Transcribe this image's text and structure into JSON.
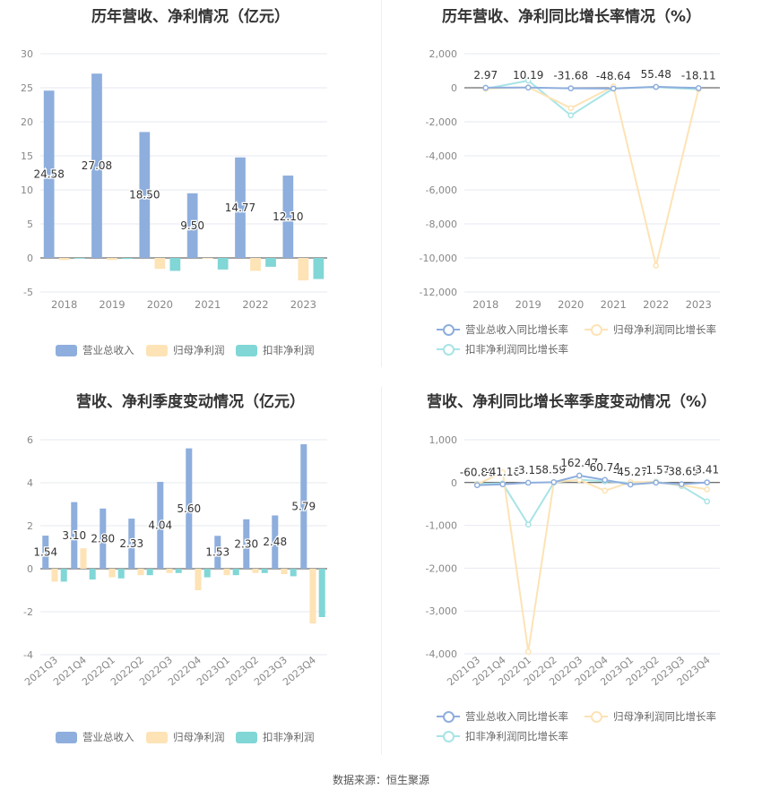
{
  "colors": {
    "revenue": "#8eaedd",
    "net_profit": "#fde3b5",
    "deducted_profit": "#81d6d6",
    "grid": "#e6e9f0",
    "axis_text": "#888888",
    "label_text": "#333333"
  },
  "source": "数据来源：恒生聚源",
  "panels": {
    "p1": {
      "title": "历年营收、净利情况（亿元）",
      "legend": [
        {
          "label": "营业总收入",
          "icon": "bar-swatch"
        },
        {
          "label": "归母净利润",
          "icon": "bar-swatch"
        },
        {
          "label": "扣非净利润",
          "icon": "bar-swatch"
        }
      ]
    },
    "p2": {
      "title": "历年营收、净利同比增长率情况（%）",
      "legend": [
        {
          "label": "营业总收入同比增长率",
          "icon": "line-circle"
        },
        {
          "label": "归母净利润同比增长率",
          "icon": "line-circle"
        },
        {
          "label": "扣非净利润同比增长率",
          "icon": "line-circle"
        }
      ]
    },
    "p3": {
      "title": "营收、净利季度变动情况（亿元）",
      "legend": [
        {
          "label": "营业总收入",
          "icon": "bar-swatch"
        },
        {
          "label": "归母净利润",
          "icon": "bar-swatch"
        },
        {
          "label": "扣非净利润",
          "icon": "bar-swatch"
        }
      ]
    },
    "p4": {
      "title": "营收、净利同比增长率季度变动情况（%）",
      "legend": [
        {
          "label": "营业总收入同比增长率",
          "icon": "line-circle"
        },
        {
          "label": "归母净利润同比增长率",
          "icon": "line-circle"
        },
        {
          "label": "扣非净利润同比增长率",
          "icon": "line-circle"
        }
      ]
    }
  },
  "chart_data": [
    {
      "type": "bar",
      "title": "历年营收、净利情况（亿元）",
      "categories": [
        "2018",
        "2019",
        "2020",
        "2021",
        "2022",
        "2023"
      ],
      "ylim": [
        -5,
        30
      ],
      "yticks": [
        -5,
        0,
        5,
        10,
        15,
        20,
        25,
        30
      ],
      "grid": true,
      "legend_position": "bottom",
      "series": [
        {
          "name": "营业总收入",
          "values": [
            24.58,
            27.08,
            18.5,
            9.5,
            14.77,
            12.1
          ],
          "labels": [
            "24.58",
            "27.08",
            "18.50",
            "9.50",
            "14.77",
            "12.10"
          ]
        },
        {
          "name": "归母净利润",
          "values": [
            -0.3,
            -0.3,
            -1.6,
            -0.1,
            -1.9,
            -3.3
          ]
        },
        {
          "name": "扣非净利润",
          "values": [
            -0.1,
            -0.15,
            -1.9,
            -1.7,
            -1.3,
            -3.1
          ]
        }
      ]
    },
    {
      "type": "line",
      "title": "历年营收、净利同比增长率情况（%）",
      "categories": [
        "2018",
        "2019",
        "2020",
        "2021",
        "2022",
        "2023"
      ],
      "ylim": [
        -12000,
        2000
      ],
      "yticks": [
        -12000,
        -10000,
        -8000,
        -6000,
        -4000,
        -2000,
        0,
        2000
      ],
      "ytick_labels": [
        "-12,000",
        "-10,000",
        "-8,000",
        "-6,000",
        "-4,000",
        "-2,000",
        "0",
        "2,000"
      ],
      "grid": true,
      "legend_position": "bottom",
      "series": [
        {
          "name": "营业总收入同比增长率",
          "values": [
            2.97,
            10.19,
            -31.68,
            -48.64,
            55.48,
            -18.11
          ],
          "labels": [
            "2.97",
            "10.19",
            "-31.68",
            "-48.64",
            "55.48",
            "-18.11"
          ]
        },
        {
          "name": "归母净利润同比增长率",
          "values": [
            -50,
            30,
            -1200,
            80,
            -10450,
            -80
          ]
        },
        {
          "name": "扣非净利润同比增长率",
          "values": [
            -60,
            420,
            -1620,
            -30,
            40,
            -90
          ]
        }
      ]
    },
    {
      "type": "bar",
      "title": "营收、净利季度变动情况（亿元）",
      "categories": [
        "2021Q3",
        "2021Q4",
        "2022Q1",
        "2022Q2",
        "2022Q3",
        "2022Q4",
        "2023Q1",
        "2023Q2",
        "2023Q3",
        "2023Q4"
      ],
      "ylim": [
        -4,
        6
      ],
      "yticks": [
        -4,
        -2,
        0,
        2,
        4,
        6
      ],
      "grid": true,
      "legend_position": "bottom",
      "series": [
        {
          "name": "营业总收入",
          "values": [
            1.54,
            3.1,
            2.8,
            2.33,
            4.04,
            5.6,
            1.53,
            2.3,
            2.48,
            5.79
          ],
          "labels": [
            "1.54",
            "3.10",
            "2.80",
            "2.33",
            "4.04",
            "5.60",
            "1.53",
            "2.30",
            "2.48",
            "5.79"
          ]
        },
        {
          "name": "归母净利润",
          "values": [
            -0.6,
            0.95,
            -0.4,
            -0.3,
            -0.2,
            -1.0,
            -0.3,
            -0.2,
            -0.25,
            -2.55
          ]
        },
        {
          "name": "扣非净利润",
          "values": [
            -0.6,
            -0.5,
            -0.45,
            -0.3,
            -0.2,
            -0.4,
            -0.3,
            -0.2,
            -0.35,
            -2.25
          ]
        }
      ]
    },
    {
      "type": "line",
      "title": "营收、净利同比增长率季度变动情况（%）",
      "categories": [
        "2021Q3",
        "2021Q4",
        "2022Q1",
        "2022Q2",
        "2022Q3",
        "2022Q4",
        "2023Q1",
        "2023Q2",
        "2023Q3",
        "2023Q4"
      ],
      "ylim": [
        -4000,
        1000
      ],
      "yticks": [
        -4000,
        -3000,
        -2000,
        -1000,
        0,
        1000
      ],
      "ytick_labels": [
        "-4,000",
        "-3,000",
        "-2,000",
        "-1,000",
        "0",
        "1,000"
      ],
      "grid": true,
      "legend_position": "bottom",
      "series": [
        {
          "name": "营业总收入同比增长率",
          "values": [
            -60.86,
            -41.16,
            -3.15,
            8.59,
            162.47,
            60.74,
            -45.27,
            -1.57,
            -38.65,
            3.41
          ],
          "labels": [
            "-60.86",
            "-41.16",
            "-3.15",
            "8.59",
            "162.47",
            "60.74",
            "-45.27",
            "-1.57",
            "-38.65",
            "3.41"
          ]
        },
        {
          "name": "归母净利润同比增长率",
          "values": [
            -40,
            240,
            -3950,
            10,
            60,
            -190,
            10,
            10,
            -60,
            -160
          ]
        },
        {
          "name": "扣非净利润同比增长率",
          "values": [
            -30,
            -20,
            -980,
            0,
            70,
            30,
            -10,
            20,
            -80,
            -440
          ]
        }
      ]
    }
  ]
}
